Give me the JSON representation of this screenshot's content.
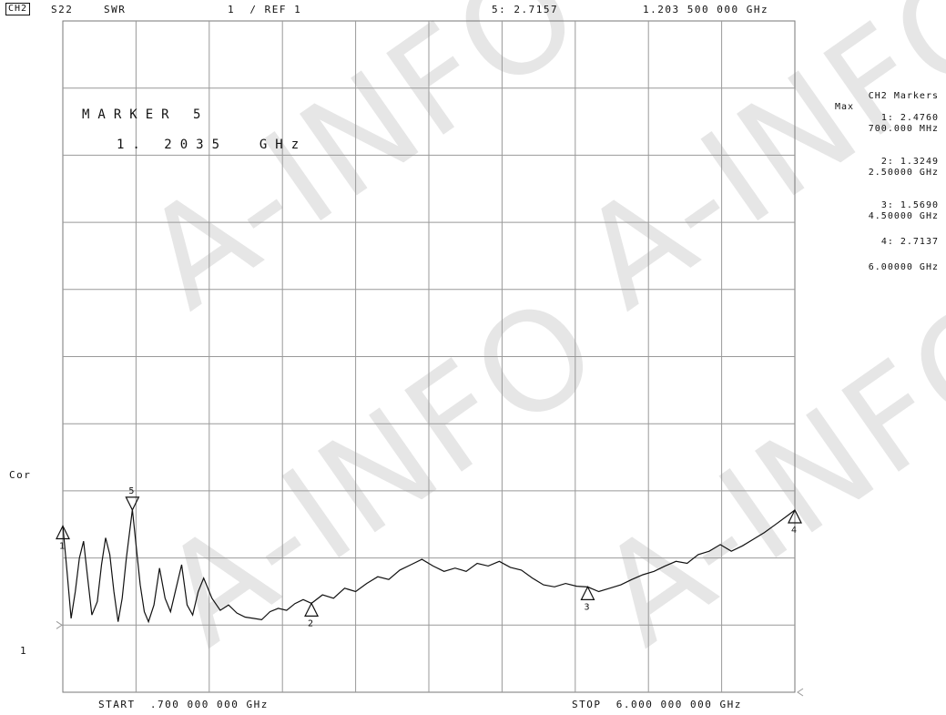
{
  "header": {
    "channel": "CH2",
    "parameter": "S22",
    "format": "SWR",
    "scale": "1  / REF 1",
    "active_marker_readout": "5: 2.7157",
    "active_marker_freq": "1.203 500 000 GHz"
  },
  "marker_box": {
    "title": "MARKER 5",
    "freq": "1. 2035  GHz"
  },
  "left_labels": {
    "cor": "Cor",
    "ref": "1"
  },
  "footer": {
    "start": "START  .700 000 000 GHz",
    "stop": "STOP  6.000 000 000 GHz"
  },
  "marker_list": {
    "title": "CH2 Markers",
    "mode": "Max",
    "entries": [
      {
        "value": "1: 2.4760",
        "freq": "700.000 MHz"
      },
      {
        "value": "2: 1.3249",
        "freq": "2.50000 GHz"
      },
      {
        "value": "3: 1.5690",
        "freq": "4.50000 GHz"
      },
      {
        "value": "4: 2.7137",
        "freq": "6.00000 GHz"
      }
    ]
  },
  "watermark": "A-INFO",
  "chart_data": {
    "type": "line",
    "xlim": [
      0.7,
      6.0
    ],
    "ylim": [
      0,
      10
    ],
    "grid": true,
    "series": [
      {
        "x": [
          0.7,
          0.73,
          0.76,
          0.79,
          0.82,
          0.85,
          0.88,
          0.91,
          0.95,
          0.98,
          1.01,
          1.04,
          1.07,
          1.1,
          1.13,
          1.16,
          1.2035,
          1.23,
          1.26,
          1.29,
          1.32,
          1.36,
          1.4,
          1.44,
          1.48,
          1.52,
          1.56,
          1.6,
          1.64,
          1.68,
          1.72,
          1.78,
          1.84,
          1.9,
          1.96,
          2.02,
          2.08,
          2.14,
          2.2,
          2.26,
          2.32,
          2.38,
          2.44,
          2.5,
          2.58,
          2.66,
          2.74,
          2.82,
          2.9,
          2.98,
          3.06,
          3.14,
          3.22,
          3.3,
          3.38,
          3.46,
          3.54,
          3.62,
          3.7,
          3.78,
          3.86,
          3.94,
          4.02,
          4.1,
          4.18,
          4.26,
          4.34,
          4.42,
          4.5,
          4.58,
          4.66,
          4.74,
          4.82,
          4.9,
          4.98,
          5.06,
          5.14,
          5.22,
          5.3,
          5.38,
          5.46,
          5.54,
          5.62,
          5.7,
          5.78,
          5.86,
          5.94,
          6.0
        ],
        "y": [
          2.48,
          1.8,
          1.1,
          1.5,
          2.0,
          2.25,
          1.7,
          1.15,
          1.35,
          1.9,
          2.3,
          2.05,
          1.5,
          1.05,
          1.4,
          2.0,
          2.72,
          2.2,
          1.6,
          1.2,
          1.05,
          1.3,
          1.85,
          1.4,
          1.2,
          1.55,
          1.9,
          1.3,
          1.15,
          1.5,
          1.7,
          1.4,
          1.22,
          1.3,
          1.18,
          1.12,
          1.1,
          1.08,
          1.2,
          1.25,
          1.22,
          1.32,
          1.38,
          1.324,
          1.45,
          1.4,
          1.55,
          1.5,
          1.62,
          1.72,
          1.68,
          1.82,
          1.9,
          1.98,
          1.88,
          1.8,
          1.85,
          1.8,
          1.92,
          1.88,
          1.95,
          1.86,
          1.82,
          1.7,
          1.6,
          1.57,
          1.62,
          1.58,
          1.569,
          1.5,
          1.55,
          1.6,
          1.68,
          1.75,
          1.8,
          1.88,
          1.95,
          1.92,
          2.05,
          2.1,
          2.2,
          2.1,
          2.18,
          2.28,
          2.38,
          2.5,
          2.62,
          2.714
        ]
      }
    ],
    "markers": [
      {
        "label": "1",
        "x": 0.7,
        "y": 2.476
      },
      {
        "label": "2",
        "x": 2.5,
        "y": 1.3249
      },
      {
        "label": "3",
        "x": 4.5,
        "y": 1.569
      },
      {
        "label": "4",
        "x": 6.0,
        "y": 2.7137
      },
      {
        "label": "5",
        "x": 1.2035,
        "y": 2.7157
      }
    ]
  }
}
